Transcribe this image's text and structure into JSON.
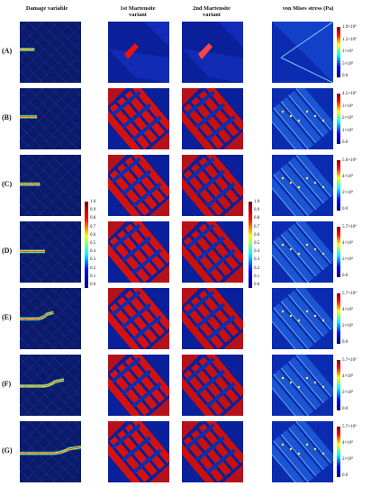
{
  "headers": {
    "damage": "Damage variable",
    "m1_line1": "1st Martensite",
    "m1_line2": "variant",
    "m2_line1": "2nd Martensite",
    "m2_line2": "variant",
    "vm": "von Mises stress (Pa)"
  },
  "rows": [
    {
      "label": "(A)",
      "vm_ticks": [
        "1.9×10⁹",
        "1.5×10⁹",
        "1×10⁹",
        "5×10⁸",
        "0.0"
      ]
    },
    {
      "label": "(B)",
      "vm_ticks": [
        "4.5×10⁹",
        "3×10⁹",
        "2×10⁹",
        "1×10⁹",
        "0.0"
      ]
    },
    {
      "label": "(C)",
      "vm_ticks": [
        "5.6×10⁹",
        "4×10⁹",
        "2×10⁹",
        "0.0"
      ]
    },
    {
      "label": "(D)",
      "vm_ticks": [
        "5.7×10⁹",
        "4×10⁹",
        "2×10⁹",
        "0.0"
      ]
    },
    {
      "label": "(E)",
      "vm_ticks": [
        "5.7×10⁹",
        "4×10⁹",
        "2×10⁹",
        "0.0"
      ]
    },
    {
      "label": "(F)",
      "vm_ticks": [
        "5.7×10⁹",
        "4×10⁹",
        "2×10⁹",
        "0.0"
      ]
    },
    {
      "label": "(G)",
      "vm_ticks": [
        "5.7×10⁹",
        "4×10⁹",
        "2×10⁹",
        "0.0"
      ]
    }
  ],
  "scale_ticks": [
    "1.0",
    "0.9",
    "0.8",
    "0.7",
    "0.6",
    "0.5",
    "0.4",
    "0.3",
    "0.2",
    "0.1",
    "0.0"
  ],
  "crack_lengths": [
    0.24,
    0.28,
    0.33,
    0.41,
    0.55,
    0.72,
    1.0
  ]
}
